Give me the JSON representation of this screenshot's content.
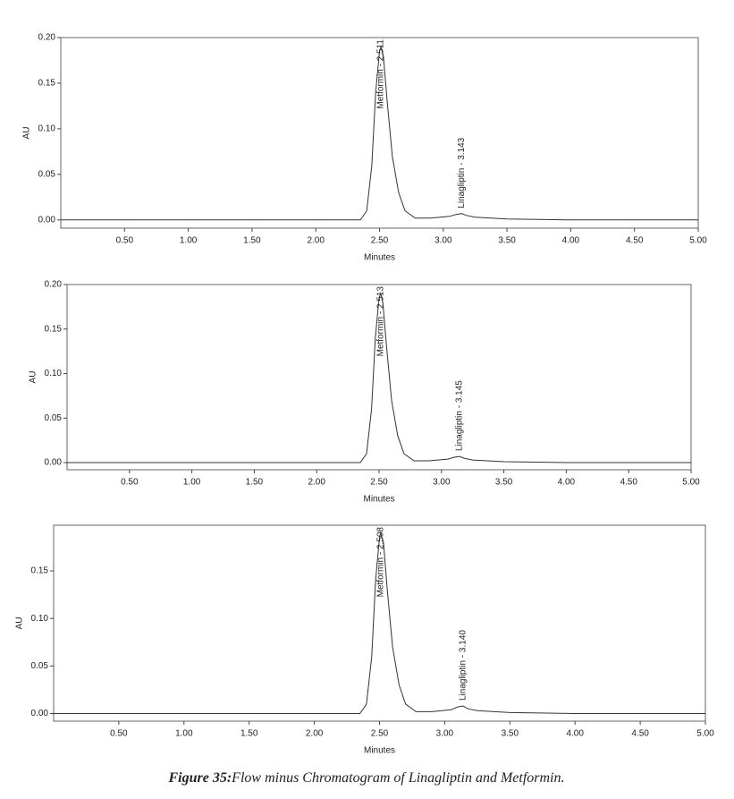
{
  "chart_data": [
    {
      "type": "line",
      "xlabel": "Minutes",
      "ylabel": "AU",
      "xlim": [
        0,
        5
      ],
      "ylim": [
        -0.009,
        0.2
      ],
      "xticks": [
        {
          "value": 0.5,
          "label": "0.50"
        },
        {
          "value": 1,
          "label": "1.00"
        },
        {
          "value": 1.5,
          "label": "1.50"
        },
        {
          "value": 2,
          "label": "2.00"
        },
        {
          "value": 2.5,
          "label": "2.50"
        },
        {
          "value": 3,
          "label": "3.00"
        },
        {
          "value": 3.5,
          "label": "3.50"
        },
        {
          "value": 4,
          "label": "4.00"
        },
        {
          "value": 4.5,
          "label": "4.50"
        },
        {
          "value": 5,
          "label": "5.00"
        }
      ],
      "yticks": [
        {
          "value": 0,
          "label": "0.00"
        },
        {
          "value": 0.05,
          "label": "0.05"
        },
        {
          "value": 0.1,
          "label": "0.10"
        },
        {
          "value": 0.15,
          "label": "0.15"
        },
        {
          "value": 0.2,
          "label": "0.20"
        }
      ],
      "color": "#333333",
      "x": [
        0,
        2.35,
        2.4,
        2.44,
        2.47,
        2.5,
        2.511,
        2.53,
        2.56,
        2.6,
        2.65,
        2.7,
        2.78,
        2.9,
        3.05,
        3.1,
        3.143,
        3.18,
        3.25,
        3.5,
        4,
        5
      ],
      "values": [
        0,
        0,
        0.01,
        0.06,
        0.14,
        0.185,
        0.19,
        0.18,
        0.13,
        0.07,
        0.03,
        0.01,
        0.002,
        0.002,
        0.004,
        0.006,
        0.007,
        0.005,
        0.003,
        0.001,
        0,
        0
      ],
      "annotations": [
        {
          "text": "Metformin - 2.511",
          "x": 2.511,
          "y": 0.19
        },
        {
          "text": "Linagliptin - 3.143",
          "x": 3.143,
          "y": 0.007
        }
      ]
    },
    {
      "type": "line",
      "xlabel": "Minutes",
      "ylabel": "AU",
      "xlim": [
        0,
        5
      ],
      "ylim": [
        -0.008,
        0.2
      ],
      "xticks": [
        {
          "value": 0.5,
          "label": "0.50"
        },
        {
          "value": 1,
          "label": "1.00"
        },
        {
          "value": 1.5,
          "label": "1.50"
        },
        {
          "value": 2,
          "label": "2.00"
        },
        {
          "value": 2.5,
          "label": "2.50"
        },
        {
          "value": 3,
          "label": "3.00"
        },
        {
          "value": 3.5,
          "label": "3.50"
        },
        {
          "value": 4,
          "label": "4.00"
        },
        {
          "value": 4.5,
          "label": "4.50"
        },
        {
          "value": 5,
          "label": "5.00"
        }
      ],
      "yticks": [
        {
          "value": 0,
          "label": "0.00"
        },
        {
          "value": 0.05,
          "label": "0.05"
        },
        {
          "value": 0.1,
          "label": "0.10"
        },
        {
          "value": 0.15,
          "label": "0.15"
        },
        {
          "value": 0.2,
          "label": "0.20"
        }
      ],
      "color": "#333333",
      "x": [
        0,
        2.35,
        2.4,
        2.44,
        2.47,
        2.5,
        2.513,
        2.53,
        2.56,
        2.6,
        2.65,
        2.7,
        2.78,
        2.9,
        3.05,
        3.1,
        3.145,
        3.18,
        3.25,
        3.5,
        4,
        5
      ],
      "values": [
        0,
        0,
        0.01,
        0.06,
        0.14,
        0.185,
        0.19,
        0.18,
        0.13,
        0.07,
        0.03,
        0.01,
        0.002,
        0.002,
        0.004,
        0.006,
        0.007,
        0.005,
        0.003,
        0.001,
        0,
        0
      ],
      "annotations": [
        {
          "text": "Metformin - 2.513",
          "x": 2.513,
          "y": 0.19
        },
        {
          "text": "Linagliptin - 3.145",
          "x": 3.145,
          "y": 0.007
        }
      ]
    },
    {
      "type": "line",
      "xlabel": "Minutes",
      "ylabel": "AU",
      "xlim": [
        0,
        5
      ],
      "ylim": [
        -0.008,
        0.198
      ],
      "xticks": [
        {
          "value": 0.5,
          "label": "0.50"
        },
        {
          "value": 1,
          "label": "1.00"
        },
        {
          "value": 1.5,
          "label": "1.50"
        },
        {
          "value": 2,
          "label": "2.00"
        },
        {
          "value": 2.5,
          "label": "2.50"
        },
        {
          "value": 3,
          "label": "3.00"
        },
        {
          "value": 3.5,
          "label": "3.50"
        },
        {
          "value": 4,
          "label": "4.00"
        },
        {
          "value": 4.5,
          "label": "4.50"
        },
        {
          "value": 5,
          "label": "5.00"
        }
      ],
      "yticks": [
        {
          "value": 0,
          "label": "0.00"
        },
        {
          "value": 0.05,
          "label": "0.05"
        },
        {
          "value": 0.1,
          "label": "0.10"
        },
        {
          "value": 0.15,
          "label": "0.15"
        }
      ],
      "color": "#333333",
      "x": [
        0,
        2.35,
        2.4,
        2.44,
        2.47,
        2.5,
        2.508,
        2.53,
        2.56,
        2.6,
        2.65,
        2.7,
        2.78,
        2.9,
        3.05,
        3.1,
        3.14,
        3.18,
        3.25,
        3.5,
        4,
        5
      ],
      "values": [
        0,
        0,
        0.01,
        0.06,
        0.14,
        0.185,
        0.19,
        0.18,
        0.13,
        0.07,
        0.03,
        0.01,
        0.002,
        0.002,
        0.004,
        0.007,
        0.008,
        0.005,
        0.003,
        0.001,
        0,
        0
      ],
      "annotations": [
        {
          "text": "Metformin - 2.508",
          "x": 2.508,
          "y": 0.19
        },
        {
          "text": "Linagliptin - 3.140",
          "x": 3.14,
          "y": 0.008
        }
      ]
    }
  ],
  "caption": {
    "label": "Figure 35:",
    "text": "Flow minus Chromatogram of Linagliptin and Metformin."
  }
}
